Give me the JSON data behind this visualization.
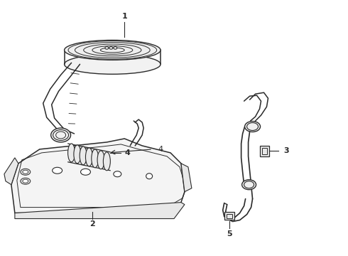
{
  "background_color": "#ffffff",
  "line_color": "#2a2a2a",
  "line_width": 1.0,
  "figsize": [
    4.9,
    3.6
  ],
  "dpi": 100,
  "label_fontsize": 8
}
